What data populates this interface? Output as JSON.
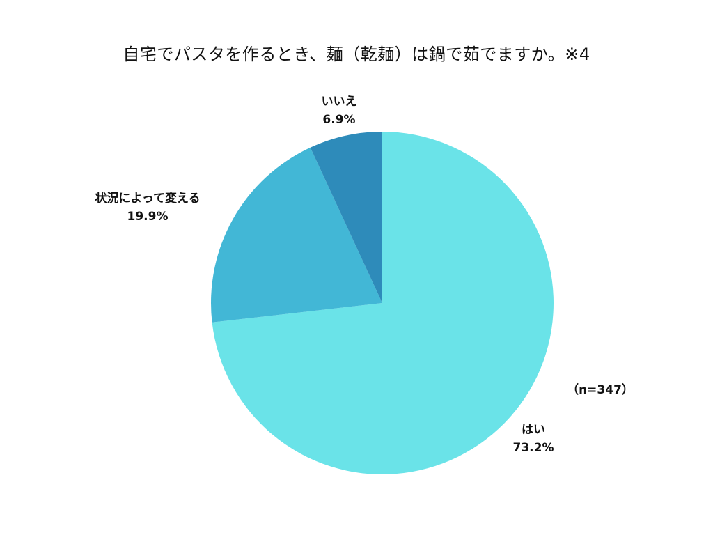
{
  "chart_data": {
    "type": "pie",
    "title": "自宅でパスタを作るとき、麺（乾麺）は鍋で茹でますか。※4",
    "note": "（n=347）",
    "slices": [
      {
        "label": "はい",
        "value": 73.2,
        "value_text": "73.2%",
        "color": "#6ae3e8"
      },
      {
        "label": "状況によって変える",
        "value": 19.9,
        "value_text": "19.9%",
        "color": "#42b7d6"
      },
      {
        "label": "いいえ",
        "value": 6.9,
        "value_text": "6.9%",
        "color": "#2e8bba"
      }
    ]
  }
}
